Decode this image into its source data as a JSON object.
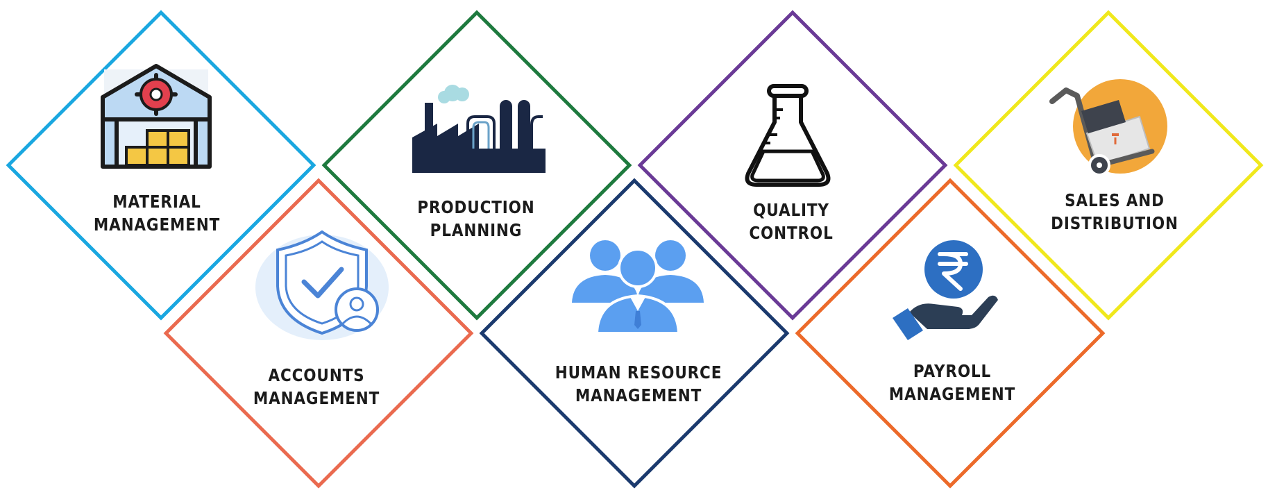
{
  "modules": [
    {
      "key": "material",
      "line1": "MATERIAL",
      "line2": "MANAGEMENT",
      "border_color": "#1aa7e0",
      "icon": "warehouse-icon"
    },
    {
      "key": "production",
      "line1": "PRODUCTION",
      "line2": "PLANNING",
      "border_color": "#1e7a3e",
      "icon": "factory-icon"
    },
    {
      "key": "quality",
      "line1": "QUALITY",
      "line2": "CONTROL",
      "border_color": "#6a3a96",
      "icon": "flask-icon"
    },
    {
      "key": "sales",
      "line1": "SALES AND",
      "line2": "DISTRIBUTION",
      "border_color": "#f0e81c",
      "icon": "hand-truck-icon"
    },
    {
      "key": "accounts",
      "line1": "ACCOUNTS",
      "line2": "MANAGEMENT",
      "border_color": "#ea6a4f",
      "icon": "shield-user-icon"
    },
    {
      "key": "hr",
      "line1": "HUMAN RESOURCE",
      "line2": "MANAGEMENT",
      "border_color": "#1b3a6e",
      "icon": "people-group-icon"
    },
    {
      "key": "payroll",
      "line1": "PAYROLL",
      "line2": "MANAGEMENT",
      "border_color": "#ec6a2a",
      "icon": "rupee-hand-icon"
    }
  ],
  "colors": {
    "icon_blue": "#5b9ff0",
    "navy": "#1a2744",
    "orange": "#f2a73a",
    "text": "#1b1b1b"
  }
}
